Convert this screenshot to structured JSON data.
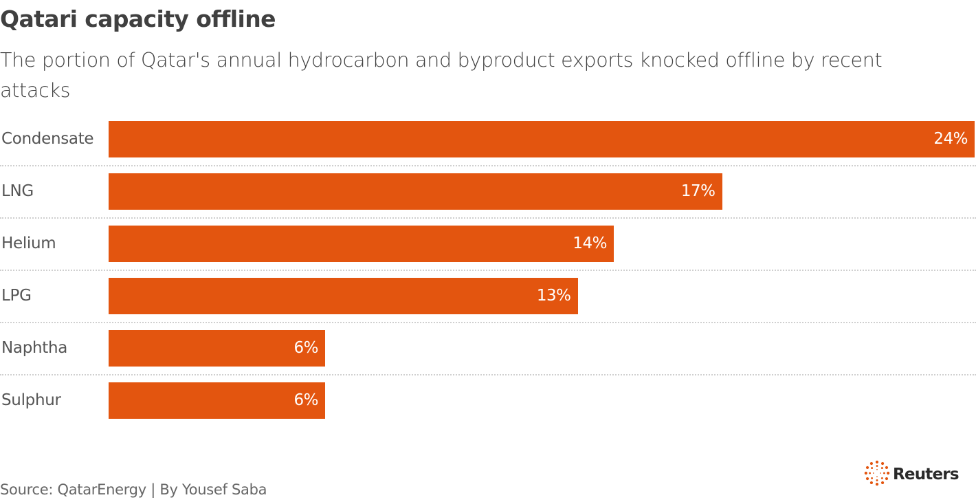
{
  "header": {
    "title": "Qatari capacity offline",
    "subtitle": "The portion of Qatar's annual hydrocarbon and byproduct exports knocked offline by recent attacks"
  },
  "footer": {
    "source": "Source: QatarEnergy | By Yousef Saba",
    "logo_text": "Reuters",
    "logo_icon": "reuters-dot-ring-icon"
  },
  "colors": {
    "bar": "#e3550f",
    "text": "#404040",
    "separator": "#cfcfcf",
    "logo_accent": "#e3550f"
  },
  "chart_data": {
    "type": "bar",
    "orientation": "horizontal",
    "title": "Qatari capacity offline",
    "subtitle": "The portion of Qatar's annual hydrocarbon and byproduct exports knocked offline by recent attacks",
    "categories": [
      "Condensate",
      "LNG",
      "Helium",
      "LPG",
      "Naphtha",
      "Sulphur"
    ],
    "values": [
      24,
      17,
      14,
      13,
      6,
      6
    ],
    "value_labels": [
      "24%",
      "17%",
      "14%",
      "13%",
      "6%",
      "6%"
    ],
    "unit": "%",
    "xlabel": "",
    "ylabel": "",
    "xlim": [
      0,
      24
    ],
    "grid": false,
    "legend": null,
    "source": "Source: QatarEnergy | By Yousef Saba"
  }
}
